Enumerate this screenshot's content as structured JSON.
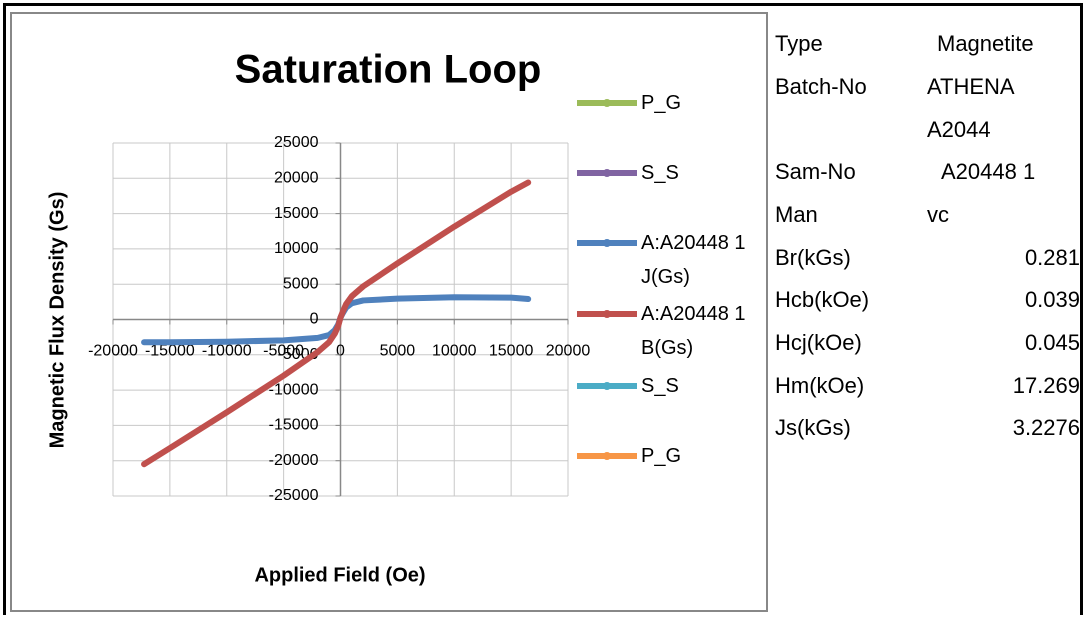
{
  "chart_data": {
    "type": "line",
    "title": "Saturation Loop",
    "x_label": "Applied Field (Oe)",
    "y_label": "Magnetic Flux Density (Gs)",
    "xlim": [
      -20000,
      20000
    ],
    "xticks": [
      -20000,
      -15000,
      -10000,
      -5000,
      0,
      5000,
      10000,
      15000,
      20000
    ],
    "ylim": [
      -25000,
      25000
    ],
    "yticks": [
      -25000,
      -20000,
      -15000,
      -10000,
      -5000,
      0,
      5000,
      10000,
      15000,
      20000,
      25000
    ],
    "grid": true,
    "legend": "right",
    "series": [
      {
        "name": "P_G",
        "color": "#9bbb59",
        "x": [],
        "values": []
      },
      {
        "name": "S_S",
        "color": "#8064a2",
        "x": [],
        "values": []
      },
      {
        "name": "A:A20448 1 J(Gs)",
        "color": "#4f81bd",
        "x": [
          -17269,
          -15000,
          -10000,
          -5000,
          -2000,
          -1000,
          -500,
          -200,
          0,
          200,
          500,
          1000,
          2000,
          5000,
          10000,
          15000,
          16500
        ],
        "values": [
          -3227,
          -3220,
          -3150,
          -2950,
          -2600,
          -2200,
          -1500,
          -700,
          281,
          900,
          1700,
          2300,
          2700,
          2950,
          3150,
          3100,
          2900
        ]
      },
      {
        "name": "A:A20448 1 B(Gs)",
        "color": "#c0504d",
        "x": [
          -17269,
          -15000,
          -10000,
          -5000,
          -2000,
          -1000,
          -500,
          -200,
          0,
          200,
          500,
          1000,
          2000,
          5000,
          10000,
          15000,
          16500
        ],
        "values": [
          -20496,
          -18220,
          -13150,
          -7950,
          -4600,
          -3200,
          -2000,
          -900,
          281,
          1100,
          2200,
          3300,
          4700,
          7950,
          13150,
          18100,
          19400
        ]
      },
      {
        "name": "S_S",
        "color": "#4bacc6",
        "x": [],
        "values": []
      },
      {
        "name": "P_G",
        "color": "#f79646",
        "x": [],
        "values": []
      }
    ]
  },
  "table": {
    "rows": [
      [
        "Type",
        "Magnetite"
      ],
      [
        "Batch-No",
        "ATHENA A2044"
      ],
      [
        "Sam-No",
        "A20448 1"
      ],
      [
        "Man",
        "vc"
      ],
      [
        "Br(kGs)",
        0.281
      ],
      [
        "Hcb(kOe)",
        0.039
      ],
      [
        "Hcj(kOe)",
        0.045
      ],
      [
        "Hm(kOe)",
        17.269
      ],
      [
        "Js(kGs)",
        3.2276
      ]
    ]
  }
}
